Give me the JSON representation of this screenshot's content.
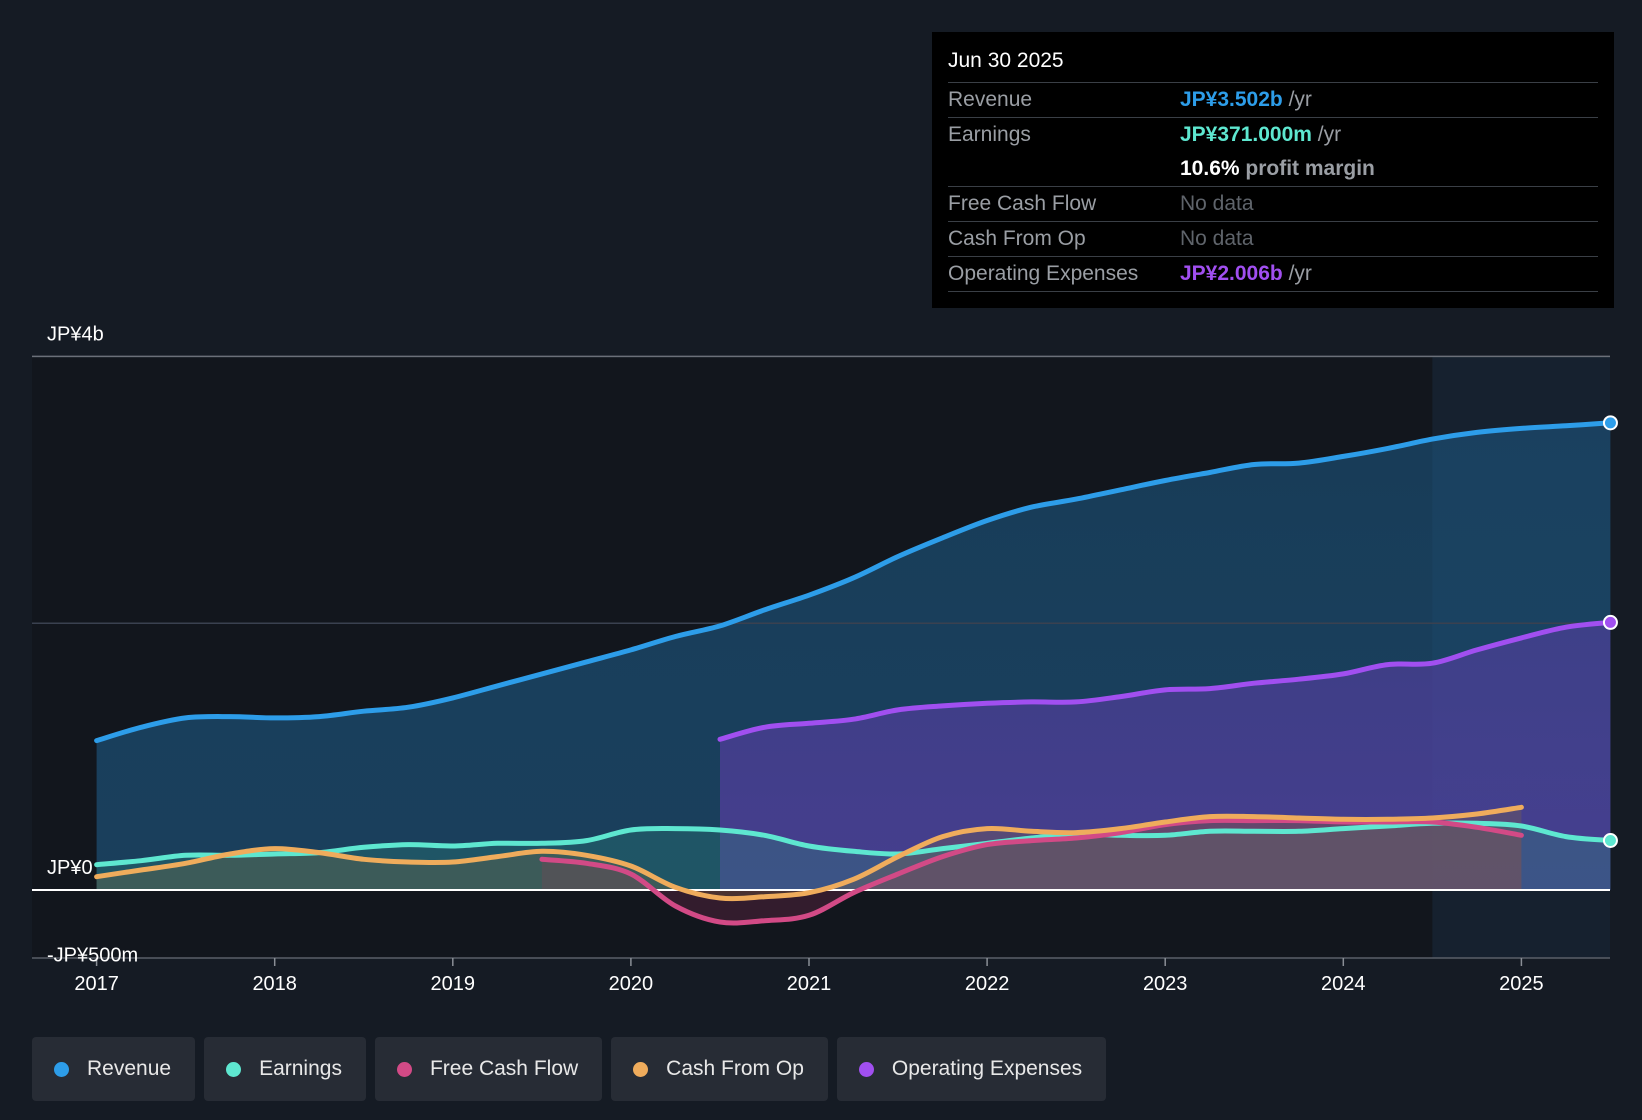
{
  "colors": {
    "background": "#151b24",
    "revenue": "#2d9de9",
    "earnings": "#5ee7d0",
    "free_cash_flow": "#d24a86",
    "cash_from_op": "#efac5c",
    "operating_expenses": "#a14ff0"
  },
  "tooltip": {
    "date": "Jun 30 2025",
    "rows": {
      "revenue": {
        "label": "Revenue",
        "value": "JP¥3.502b",
        "unit": "/yr"
      },
      "earnings": {
        "label": "Earnings",
        "value": "JP¥371.000m",
        "unit": "/yr"
      },
      "margin": {
        "value": "10.6%",
        "unit": "profit margin"
      },
      "fcf": {
        "label": "Free Cash Flow",
        "value": "No data"
      },
      "cfo": {
        "label": "Cash From Op",
        "value": "No data"
      },
      "opex": {
        "label": "Operating Expenses",
        "value": "JP¥2.006b",
        "unit": "/yr"
      }
    }
  },
  "legend": {
    "revenue": "Revenue",
    "earnings": "Earnings",
    "fcf": "Free Cash Flow",
    "cfo": "Cash From Op",
    "opex": "Operating Expenses"
  },
  "chart_data": {
    "type": "area",
    "currency": "JP¥",
    "y_unit": "billions",
    "ylim": [
      -0.5,
      4
    ],
    "y_tick_labels": [
      {
        "value": 4,
        "label": "JP¥4b"
      },
      {
        "value": 0,
        "label": "JP¥0"
      },
      {
        "value": -0.5,
        "label": "-JP¥500m"
      }
    ],
    "xlim": [
      2016.65,
      2025.5
    ],
    "x_ticks": [
      2017,
      2018,
      2019,
      2020,
      2021,
      2022,
      2023,
      2024,
      2025
    ],
    "x_tick_labels": [
      "2017",
      "2018",
      "2019",
      "2020",
      "2021",
      "2022",
      "2023",
      "2024",
      "2025"
    ],
    "highlight_from": 2024.5,
    "series": [
      {
        "key": "revenue",
        "name": "Revenue",
        "x": [
          2017.0,
          2017.25,
          2017.5,
          2017.75,
          2018.0,
          2018.25,
          2018.5,
          2018.75,
          2019.0,
          2019.25,
          2019.5,
          2019.75,
          2020.0,
          2020.25,
          2020.5,
          2020.75,
          2021.0,
          2021.25,
          2021.5,
          2021.75,
          2022.0,
          2022.25,
          2022.5,
          2022.75,
          2023.0,
          2023.25,
          2023.5,
          2023.75,
          2024.0,
          2024.25,
          2024.5,
          2024.75,
          2025.0,
          2025.25,
          2025.5
        ],
        "values": [
          1.12,
          1.22,
          1.29,
          1.3,
          1.29,
          1.3,
          1.34,
          1.37,
          1.44,
          1.53,
          1.62,
          1.71,
          1.8,
          1.9,
          1.98,
          2.1,
          2.21,
          2.34,
          2.5,
          2.64,
          2.77,
          2.87,
          2.93,
          3.0,
          3.07,
          3.13,
          3.19,
          3.2,
          3.25,
          3.31,
          3.38,
          3.43,
          3.46,
          3.48,
          3.502
        ]
      },
      {
        "key": "opex",
        "name": "Operating Expenses",
        "x": [
          2020.5,
          2020.75,
          2021.0,
          2021.25,
          2021.5,
          2021.75,
          2022.0,
          2022.25,
          2022.5,
          2022.75,
          2023.0,
          2023.25,
          2023.5,
          2023.75,
          2024.0,
          2024.25,
          2024.5,
          2024.75,
          2025.0,
          2025.25,
          2025.5
        ],
        "values": [
          1.13,
          1.22,
          1.25,
          1.28,
          1.35,
          1.38,
          1.4,
          1.41,
          1.41,
          1.45,
          1.5,
          1.51,
          1.55,
          1.58,
          1.62,
          1.69,
          1.7,
          1.8,
          1.89,
          1.97,
          2.006
        ]
      },
      {
        "key": "earnings",
        "name": "Earnings",
        "x": [
          2017.0,
          2017.25,
          2017.5,
          2017.75,
          2018.0,
          2018.25,
          2018.5,
          2018.75,
          2019.0,
          2019.25,
          2019.5,
          2019.75,
          2020.0,
          2020.25,
          2020.5,
          2020.75,
          2021.0,
          2021.25,
          2021.5,
          2021.75,
          2022.0,
          2022.25,
          2022.5,
          2022.75,
          2023.0,
          2023.25,
          2023.5,
          2023.75,
          2024.0,
          2024.25,
          2024.5,
          2024.75,
          2025.0,
          2025.25,
          2025.5
        ],
        "values": [
          0.19,
          0.22,
          0.26,
          0.26,
          0.27,
          0.28,
          0.32,
          0.34,
          0.33,
          0.35,
          0.35,
          0.37,
          0.45,
          0.46,
          0.45,
          0.41,
          0.33,
          0.29,
          0.27,
          0.31,
          0.35,
          0.39,
          0.42,
          0.41,
          0.41,
          0.44,
          0.44,
          0.44,
          0.46,
          0.48,
          0.5,
          0.5,
          0.48,
          0.4,
          0.371
        ]
      },
      {
        "key": "fcf",
        "name": "Free Cash Flow",
        "x": [
          2019.5,
          2019.75,
          2020.0,
          2020.25,
          2020.5,
          2020.75,
          2021.0,
          2021.25,
          2021.5,
          2021.75,
          2022.0,
          2022.25,
          2022.5,
          2022.75,
          2023.0,
          2023.25,
          2023.5,
          2023.75,
          2024.0,
          2024.25,
          2024.5,
          2024.75,
          2025.0
        ],
        "values": [
          0.23,
          0.2,
          0.12,
          -0.12,
          -0.24,
          -0.23,
          -0.19,
          -0.02,
          0.12,
          0.25,
          0.34,
          0.37,
          0.39,
          0.43,
          0.49,
          0.52,
          0.52,
          0.52,
          0.51,
          0.51,
          0.51,
          0.47,
          0.41
        ]
      },
      {
        "key": "cfo",
        "name": "Cash From Op",
        "x": [
          2017.0,
          2017.25,
          2017.5,
          2017.75,
          2018.0,
          2018.25,
          2018.5,
          2018.75,
          2019.0,
          2019.25,
          2019.5,
          2019.75,
          2020.0,
          2020.25,
          2020.5,
          2020.75,
          2021.0,
          2021.25,
          2021.5,
          2021.75,
          2022.0,
          2022.25,
          2022.5,
          2022.75,
          2023.0,
          2023.25,
          2023.5,
          2023.75,
          2024.0,
          2024.25,
          2024.5,
          2024.75,
          2025.0
        ],
        "values": [
          0.1,
          0.15,
          0.2,
          0.27,
          0.31,
          0.28,
          0.23,
          0.21,
          0.21,
          0.25,
          0.29,
          0.26,
          0.18,
          0.02,
          -0.06,
          -0.05,
          -0.02,
          0.08,
          0.25,
          0.4,
          0.46,
          0.44,
          0.43,
          0.46,
          0.51,
          0.55,
          0.55,
          0.54,
          0.53,
          0.53,
          0.54,
          0.57,
          0.62
        ]
      }
    ]
  }
}
